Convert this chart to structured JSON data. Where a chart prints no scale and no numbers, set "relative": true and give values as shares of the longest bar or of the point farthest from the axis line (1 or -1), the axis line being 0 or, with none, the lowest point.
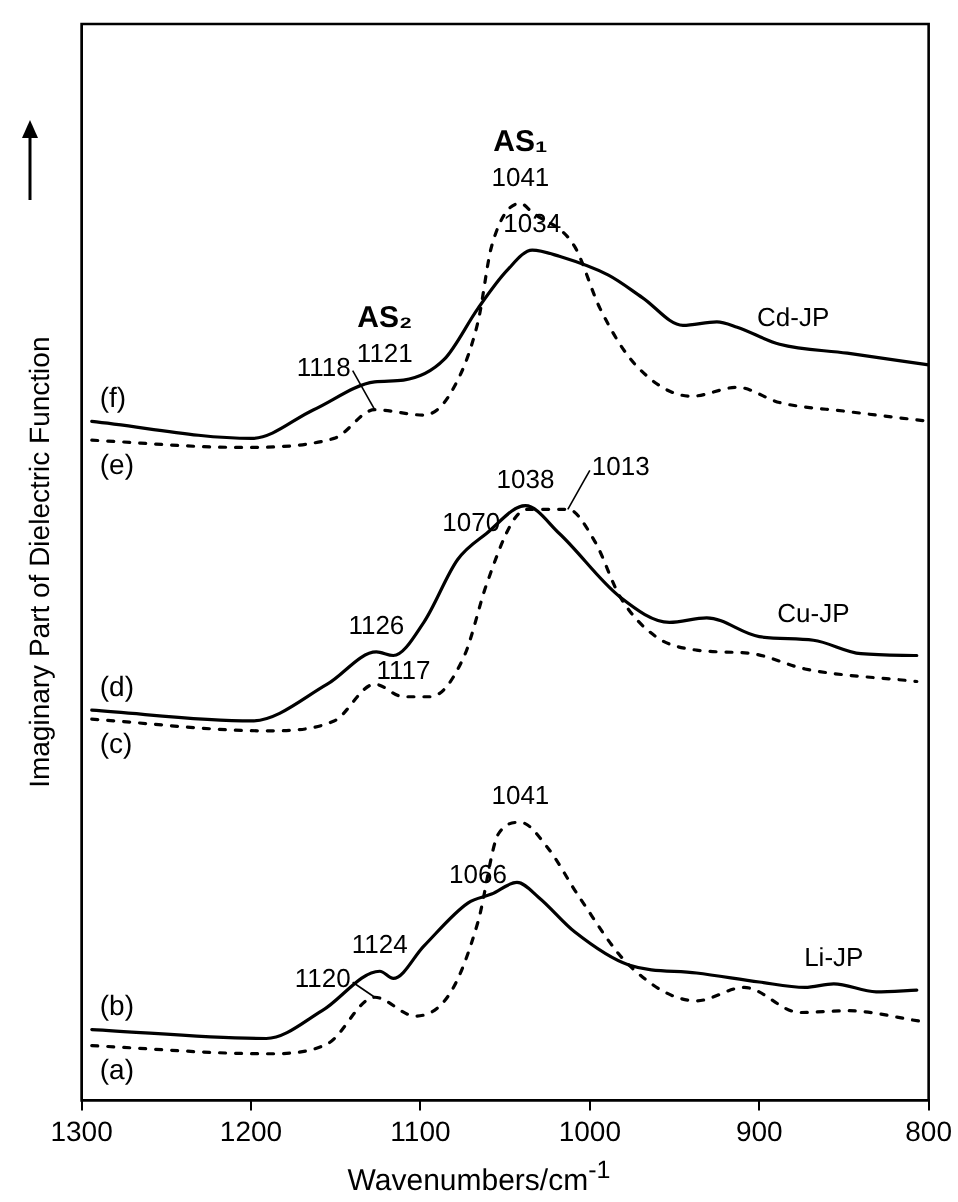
{
  "chart_data": {
    "type": "line",
    "relative": true,
    "xlabel": "Wavenumbers/cm$^{-1}$",
    "ylabel": "Imaginary Part of Dielectric Function",
    "xlim": [
      1300,
      800
    ],
    "xticks": [
      1300,
      1200,
      1100,
      1000,
      900,
      800
    ],
    "grid": false,
    "legend": false,
    "marker": "none",
    "series": [
      {
        "name": "(f)",
        "color": "#000000",
        "line_style": "solid",
        "x": [
          1294,
          1199.5,
          1163,
          1127,
          1110,
          1086,
          1066,
          1049,
          1034,
          1018,
          989,
          969,
          945,
          925,
          913,
          888,
          848,
          800
        ],
        "values": [
          0.757,
          0.738,
          0.77,
          0.801,
          0.803,
          0.826,
          0.883,
          0.925,
          0.948,
          0.941,
          0.92,
          0.895,
          0.864,
          0.868,
          0.862,
          0.843,
          0.833,
          0.82
        ]
      },
      {
        "name": "(e)",
        "color": "#000000",
        "line_style": "dotted",
        "x": [
          1294,
          1207,
          1151,
          1127,
          1098,
          1082,
          1066,
          1058,
          1041,
          1034,
          1009,
          994,
          973,
          940,
          913,
          888,
          848,
          800
        ],
        "values": [
          0.736,
          0.728,
          0.738,
          0.77,
          0.764,
          0.789,
          0.868,
          0.952,
          1.0,
          0.99,
          0.952,
          0.883,
          0.82,
          0.785,
          0.795,
          0.778,
          0.768,
          0.757
        ]
      },
      {
        "name": "(d)",
        "color": "#000000",
        "line_style": "solid",
        "x": [
          1294,
          1199.5,
          1155,
          1126,
          1116,
          1098,
          1078,
          1061,
          1038,
          1018,
          982,
          953,
          931,
          900,
          868,
          840,
          807
        ],
        "values": [
          0.435,
          0.423,
          0.464,
          0.5,
          0.496,
          0.533,
          0.603,
          0.632,
          0.663,
          0.632,
          0.561,
          0.533,
          0.538,
          0.517,
          0.513,
          0.498,
          0.496
        ]
      },
      {
        "name": "(c)",
        "color": "#000000",
        "line_style": "dotted",
        "x": [
          1294,
          1191,
          1151,
          1127,
          1110,
          1094,
          1074,
          1061,
          1046,
          1037,
          1013,
          997,
          982,
          961,
          937,
          904,
          873,
          807
        ],
        "values": [
          0.425,
          0.412,
          0.423,
          0.464,
          0.45,
          0.45,
          0.496,
          0.575,
          0.644,
          0.659,
          0.659,
          0.623,
          0.561,
          0.517,
          0.502,
          0.498,
          0.481,
          0.467
        ]
      },
      {
        "name": "(b)",
        "color": "#000000",
        "line_style": "solid",
        "x": [
          1294,
          1191,
          1158,
          1124,
          1116,
          1098,
          1072,
          1058,
          1043,
          1030,
          1009,
          977,
          937,
          900,
          873,
          856,
          831,
          807
        ],
        "values": [
          0.079,
          0.069,
          0.1,
          0.144,
          0.136,
          0.172,
          0.22,
          0.23,
          0.243,
          0.226,
          0.188,
          0.151,
          0.142,
          0.132,
          0.126,
          0.13,
          0.121,
          0.123
        ]
      },
      {
        "name": "(a)",
        "color": "#000000",
        "line_style": "dotted",
        "x": [
          1294,
          1191,
          1155,
          1127,
          1103,
          1082,
          1066,
          1054,
          1041,
          1025,
          1006,
          977,
          937,
          909,
          876,
          848,
          804
        ],
        "values": [
          0.061,
          0.052,
          0.063,
          0.115,
          0.094,
          0.121,
          0.199,
          0.297,
          0.31,
          0.282,
          0.226,
          0.151,
          0.111,
          0.126,
          0.098,
          0.1,
          0.088
        ]
      }
    ],
    "annotations": [
      {
        "text": "1041",
        "x": 1041,
        "y": 1.0
      },
      {
        "text": "AS₁",
        "x": 1041,
        "y": 1.0
      },
      {
        "text": "1034",
        "x": 1034,
        "y": 0.948
      },
      {
        "text": "1121",
        "x": 1121,
        "y": 0.803
      },
      {
        "text": "AS₂",
        "x": 1121,
        "y": 0.803
      },
      {
        "text": "1118",
        "x": 1127,
        "y": 0.77
      },
      {
        "text": "Cd-JP",
        "x": 880,
        "y": 0.843
      },
      {
        "text": "1038",
        "x": 1038,
        "y": 0.663
      },
      {
        "text": "1013",
        "x": 1013,
        "y": 0.659
      },
      {
        "text": "1070",
        "x": 1070,
        "y": 0.615
      },
      {
        "text": "1126",
        "x": 1126,
        "y": 0.5
      },
      {
        "text": "1117",
        "x": 1110,
        "y": 0.45
      },
      {
        "text": "Cu-JP",
        "x": 868,
        "y": 0.513
      },
      {
        "text": "1041",
        "x": 1041,
        "y": 0.31
      },
      {
        "text": "1066",
        "x": 1066,
        "y": 0.223
      },
      {
        "text": "1124",
        "x": 1124,
        "y": 0.144
      },
      {
        "text": "1120",
        "x": 1127,
        "y": 0.115
      },
      {
        "text": "Li-JP",
        "x": 856,
        "y": 0.13
      }
    ]
  }
}
